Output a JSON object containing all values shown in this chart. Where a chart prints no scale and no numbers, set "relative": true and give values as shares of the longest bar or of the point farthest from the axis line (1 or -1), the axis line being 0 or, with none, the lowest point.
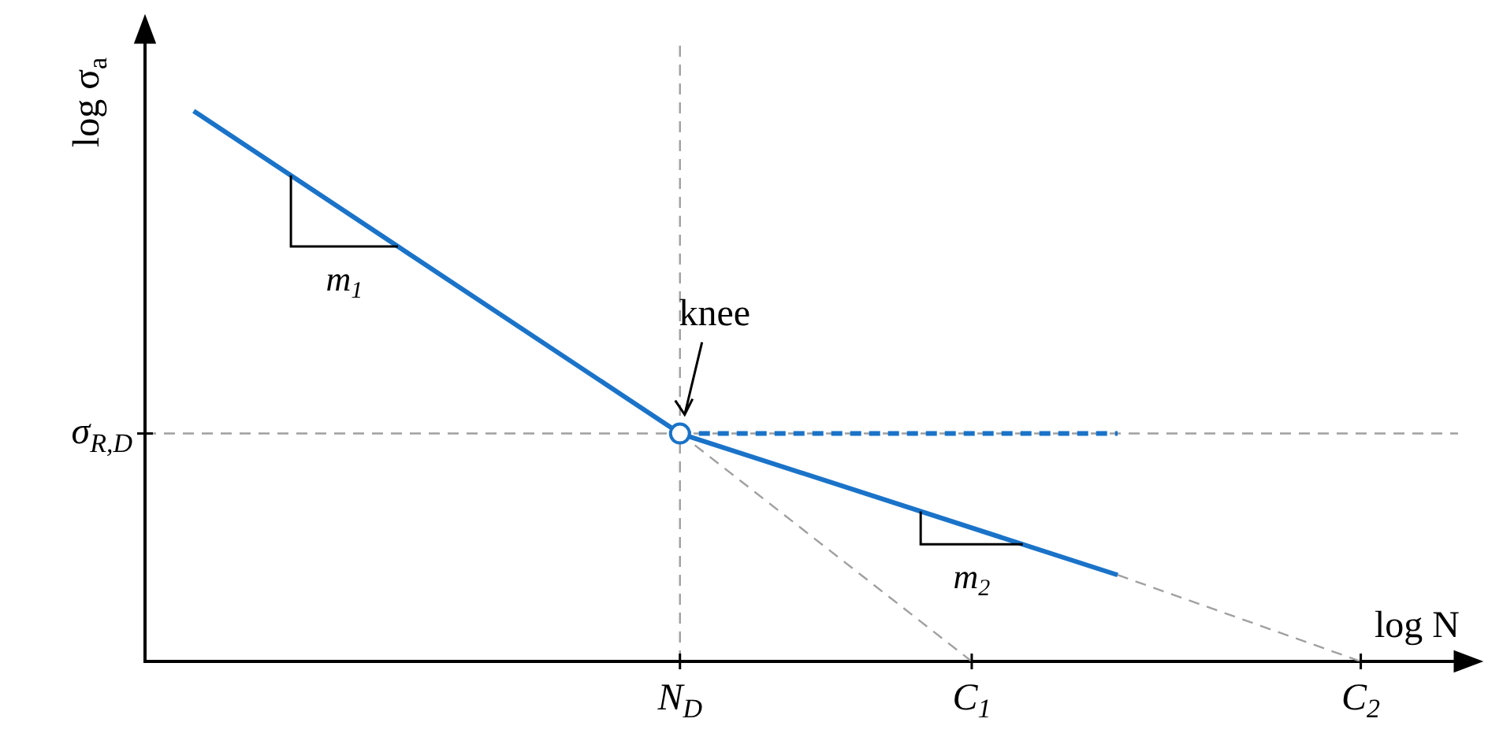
{
  "chart_data": {
    "type": "line",
    "relative": true,
    "xlabel": "log N",
    "ylabel": "log σ$_{a}$",
    "categories": [
      null,
      null,
      null,
      null,
      null,
      null,
      null,
      null,
      null,
      null,
      null,
      "N$_{D}$",
      null,
      null,
      null,
      null,
      null,
      "C$_{1}$",
      null,
      null,
      null,
      null,
      null,
      null,
      null,
      "C$_{2}$",
      null,
      null
    ],
    "series": [
      {
        "type": "line",
        "color": "#1a73c8",
        "line_style": "solid",
        "values": [
          null,
          1,
          null,
          null,
          null,
          null,
          null,
          null,
          null,
          null,
          null,
          0.414,
          null,
          null,
          null,
          null,
          null,
          null,
          null,
          null,
          0.157,
          null,
          null,
          null,
          null,
          null,
          null,
          null
        ]
      },
      {
        "type": "line",
        "color": "#1a73c8",
        "line_style": "dashed",
        "values": [
          null,
          null,
          null,
          null,
          null,
          null,
          null,
          null,
          null,
          null,
          null,
          0.414,
          null,
          null,
          null,
          null,
          null,
          null,
          null,
          null,
          0.414,
          null,
          null,
          null,
          null,
          null,
          null,
          null
        ]
      },
      {
        "type": "line",
        "color": "#a0a0a0",
        "line_style": "dashed",
        "values": [
          null,
          null,
          null,
          null,
          null,
          null,
          null,
          null,
          null,
          null,
          null,
          0.414,
          null,
          null,
          null,
          null,
          null,
          0,
          null,
          null,
          null,
          null,
          null,
          null,
          null,
          null,
          null,
          null
        ]
      },
      {
        "type": "line",
        "color": "#a0a0a0",
        "line_style": "dashed",
        "values": [
          null,
          null,
          null,
          null,
          null,
          null,
          null,
          null,
          null,
          null,
          null,
          null,
          null,
          null,
          null,
          null,
          null,
          null,
          null,
          null,
          0.157,
          null,
          null,
          null,
          null,
          0,
          null,
          null
        ]
      },
      {
        "type": "scatter",
        "color": "#1a73c8",
        "marker": "circle",
        "values": [
          null,
          null,
          null,
          null,
          null,
          null,
          null,
          null,
          null,
          null,
          null,
          0.414,
          null,
          null,
          null,
          null,
          null,
          null,
          null,
          null,
          null,
          null,
          null,
          null,
          null,
          null,
          null,
          null
        ]
      }
    ],
    "ref_lines": [
      {
        "axis": "y",
        "value": 0.414,
        "label": "σ$_{R,D}$",
        "color": "#a0a0a0",
        "line_style": "dashed"
      },
      {
        "axis": "x",
        "value": "N$_{D}$",
        "color": "#a0a0a0",
        "line_style": "dashed"
      }
    ],
    "annotations": [
      {
        "text": "knee",
        "x": "N$_{D}$",
        "y": 0.414
      },
      "m$_{1}$",
      "m$_{2}$"
    ],
    "grid": false,
    "legend": false
  }
}
